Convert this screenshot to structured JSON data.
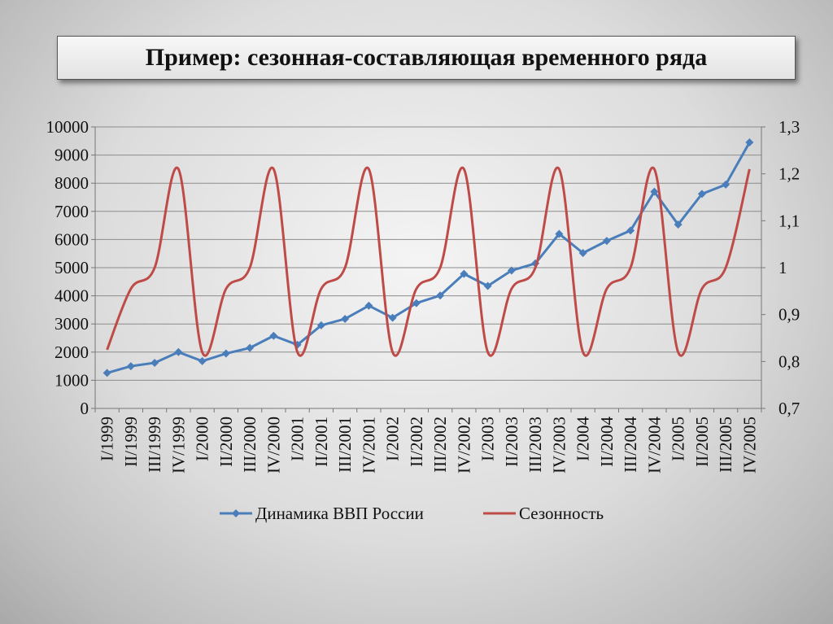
{
  "title": "Пример: сезонная-составляющая временного ряда",
  "chart_data": {
    "type": "line",
    "categories": [
      "I/1999",
      "II/1999",
      "III/1999",
      "IV/1999",
      "I/2000",
      "II/2000",
      "III/2000",
      "IV/2000",
      "I/2001",
      "II/2001",
      "III/2001",
      "IV/2001",
      "I/2002",
      "II/2002",
      "III/2002",
      "IV/2002",
      "I/2003",
      "II/2003",
      "III/2003",
      "IV/2003",
      "I/2004",
      "II/2004",
      "III/2004",
      "IV/2004",
      "I/2005",
      "II/2005",
      "III/2005",
      "IV/2005"
    ],
    "series": [
      {
        "name": "Динамика ВВП России",
        "axis": "left",
        "color": "#4a7ebb",
        "marker": "diamond",
        "values": [
          1260,
          1500,
          1620,
          2000,
          1680,
          1950,
          2150,
          2580,
          2260,
          2950,
          3180,
          3650,
          3220,
          3740,
          4010,
          4780,
          4350,
          4900,
          5150,
          6200,
          5520,
          5950,
          6320,
          7700,
          6530,
          7620,
          7950,
          9450
        ]
      },
      {
        "name": "Сезонность",
        "axis": "right",
        "color": "#be4b48",
        "smooth": true,
        "values": [
          0.825,
          0.955,
          1.0,
          1.21,
          0.82,
          0.955,
          1.0,
          1.21,
          0.82,
          0.955,
          1.0,
          1.21,
          0.82,
          0.955,
          1.0,
          1.21,
          0.82,
          0.955,
          1.0,
          1.21,
          0.82,
          0.955,
          1.0,
          1.21,
          0.82,
          0.955,
          1.0,
          1.21
        ]
      }
    ],
    "ylim": [
      0,
      10000
    ],
    "yticks": [
      "0",
      "1000",
      "2000",
      "3000",
      "4000",
      "5000",
      "6000",
      "7000",
      "8000",
      "9000",
      "10000"
    ],
    "y2lim": [
      0.7,
      1.3
    ],
    "y2ticks": [
      "0,7",
      "0,8",
      "0,9",
      "1",
      "1,1",
      "1,2",
      "1,3"
    ],
    "grid": true,
    "legend_position": "bottom"
  }
}
